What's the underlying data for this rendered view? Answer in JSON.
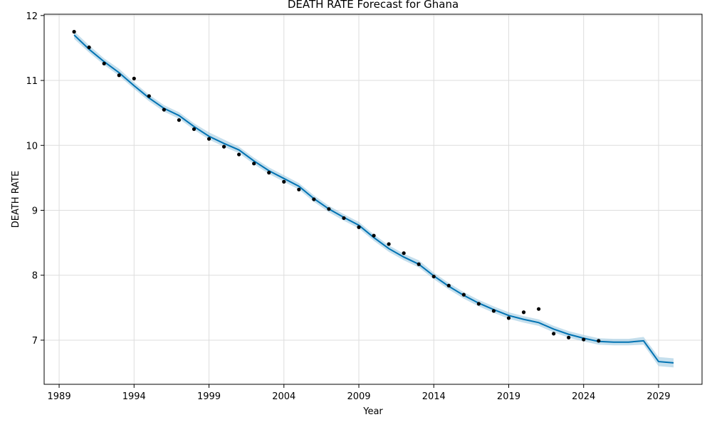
{
  "chart_data": {
    "type": "line",
    "title": "DEATH RATE Forecast for Ghana",
    "xlabel": "Year",
    "ylabel": "DEATH RATE",
    "xlim": [
      1988.0,
      2031.9
    ],
    "ylim": [
      6.32,
      12.02
    ],
    "x_ticks": [
      1989,
      1994,
      1999,
      2004,
      2009,
      2014,
      2019,
      2024,
      2029
    ],
    "y_ticks": [
      7,
      8,
      9,
      10,
      11,
      12
    ],
    "grid": true,
    "colors": {
      "forecast": "#0072B2",
      "band": "#9ecae1",
      "observed": "#000000",
      "grid": "#dddddd"
    },
    "series": [
      {
        "kind": "observed",
        "x": [
          1990,
          1991,
          1992,
          1993,
          1994,
          1995,
          1996,
          1997,
          1998,
          1999,
          2000,
          2001,
          2002,
          2003,
          2004,
          2005,
          2006,
          2007,
          2008,
          2009,
          2010,
          2011,
          2012,
          2013,
          2014,
          2015,
          2016,
          2017,
          2018,
          2019,
          2020,
          2021,
          2022,
          2023,
          2024,
          2025
        ],
        "y": [
          11.75,
          11.51,
          11.26,
          11.08,
          11.03,
          10.76,
          10.55,
          10.39,
          10.25,
          10.1,
          9.98,
          9.86,
          9.72,
          9.58,
          9.44,
          9.32,
          9.17,
          9.02,
          8.88,
          8.74,
          8.61,
          8.48,
          8.34,
          8.17,
          7.98,
          7.84,
          7.7,
          7.56,
          7.45,
          7.34,
          7.43,
          7.48,
          7.1,
          7.04,
          7.01,
          6.99
        ]
      },
      {
        "kind": "forecast",
        "x": [
          1990,
          1991,
          1992,
          1993,
          1994,
          1995,
          1996,
          1997,
          1998,
          1999,
          2000,
          2001,
          2002,
          2003,
          2004,
          2005,
          2006,
          2007,
          2008,
          2009,
          2010,
          2011,
          2012,
          2013,
          2014,
          2015,
          2016,
          2017,
          2018,
          2019,
          2020,
          2021,
          2022,
          2023,
          2024,
          2025,
          2026,
          2027,
          2028,
          2029,
          2030
        ],
        "y": [
          11.7,
          11.48,
          11.29,
          11.12,
          10.92,
          10.73,
          10.57,
          10.46,
          10.29,
          10.14,
          10.03,
          9.93,
          9.76,
          9.61,
          9.49,
          9.37,
          9.18,
          9.02,
          8.89,
          8.77,
          8.58,
          8.41,
          8.28,
          8.17,
          7.99,
          7.83,
          7.69,
          7.57,
          7.47,
          7.38,
          7.32,
          7.27,
          7.17,
          7.09,
          7.03,
          6.98,
          6.97,
          6.97,
          6.99,
          6.67,
          6.65
        ],
        "lower": [
          11.64,
          11.43,
          11.24,
          11.07,
          10.87,
          10.68,
          10.52,
          10.41,
          10.24,
          10.09,
          9.98,
          9.88,
          9.71,
          9.56,
          9.44,
          9.32,
          9.13,
          8.97,
          8.84,
          8.72,
          8.53,
          8.36,
          8.23,
          8.12,
          7.94,
          7.78,
          7.64,
          7.52,
          7.42,
          7.33,
          7.27,
          7.22,
          7.12,
          7.04,
          6.98,
          6.93,
          6.92,
          6.92,
          6.93,
          6.6,
          6.58
        ],
        "upper": [
          11.76,
          11.54,
          11.34,
          11.18,
          10.97,
          10.78,
          10.62,
          10.51,
          10.34,
          10.2,
          10.09,
          9.98,
          9.81,
          9.66,
          9.54,
          9.42,
          9.23,
          9.07,
          8.94,
          8.82,
          8.63,
          8.46,
          8.33,
          8.23,
          8.04,
          7.88,
          7.74,
          7.62,
          7.52,
          7.43,
          7.37,
          7.32,
          7.22,
          7.14,
          7.08,
          7.03,
          7.02,
          7.02,
          7.05,
          6.74,
          6.72
        ]
      }
    ]
  }
}
